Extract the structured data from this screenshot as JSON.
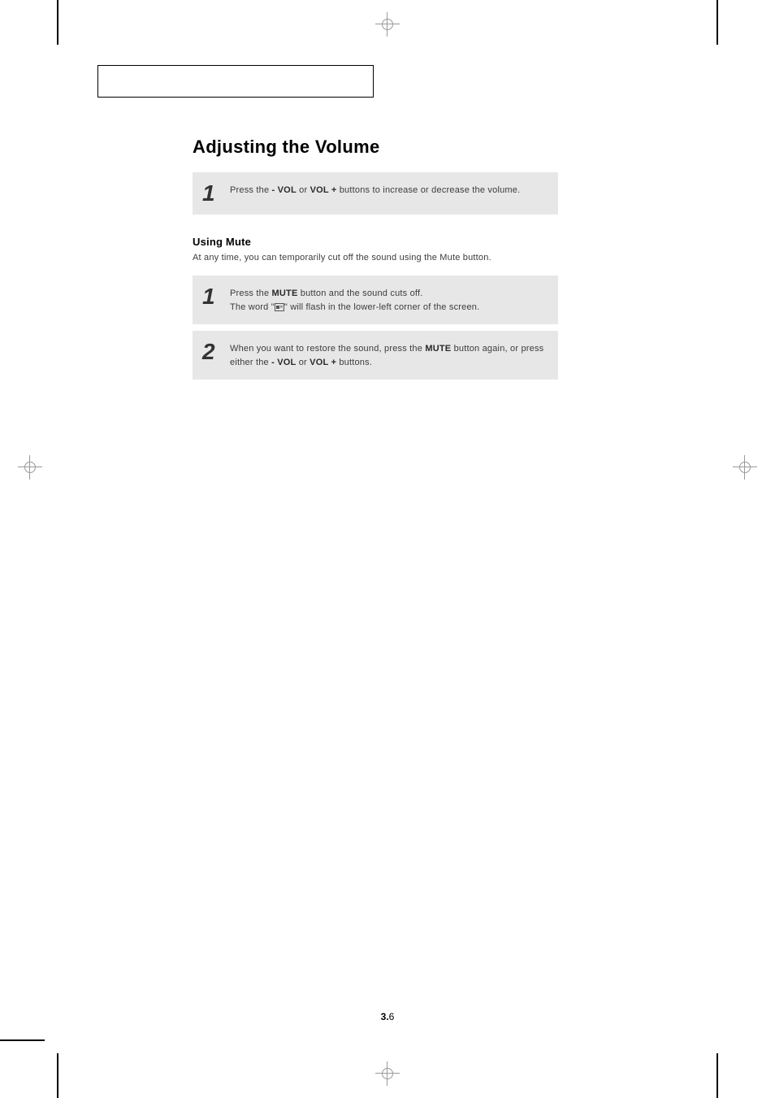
{
  "page": {
    "title": "Adjusting the Volume",
    "section_number": "3.",
    "page_sub": "6"
  },
  "step1": {
    "number": "1",
    "text_a": "Press the ",
    "vol_minus": "- VOL",
    "text_b": " or ",
    "vol_plus": "VOL +",
    "text_c": " buttons to increase or decrease the volume."
  },
  "mute": {
    "heading": "Using Mute",
    "desc": "At any time, you can temporarily cut off the sound using the Mute button.",
    "step1": {
      "number": "1",
      "line1_a": "Press the ",
      "mute_label": "MUTE",
      "line1_b": " button and the sound cuts off.",
      "line2_a": "The word \"",
      "line2_b": "\" will flash in the lower-left corner of the screen."
    },
    "step2": {
      "number": "2",
      "line1_a": "When you want to restore the sound, press the ",
      "mute_label": "MUTE",
      "line1_b": " button again, or press either the ",
      "vol_minus": "- VOL",
      "line1_c": " or ",
      "vol_plus": "VOL +",
      "line1_d": " buttons."
    }
  },
  "colors": {
    "step_bg": "#e7e7e7",
    "text": "#3c3c3c",
    "title": "#000000"
  }
}
